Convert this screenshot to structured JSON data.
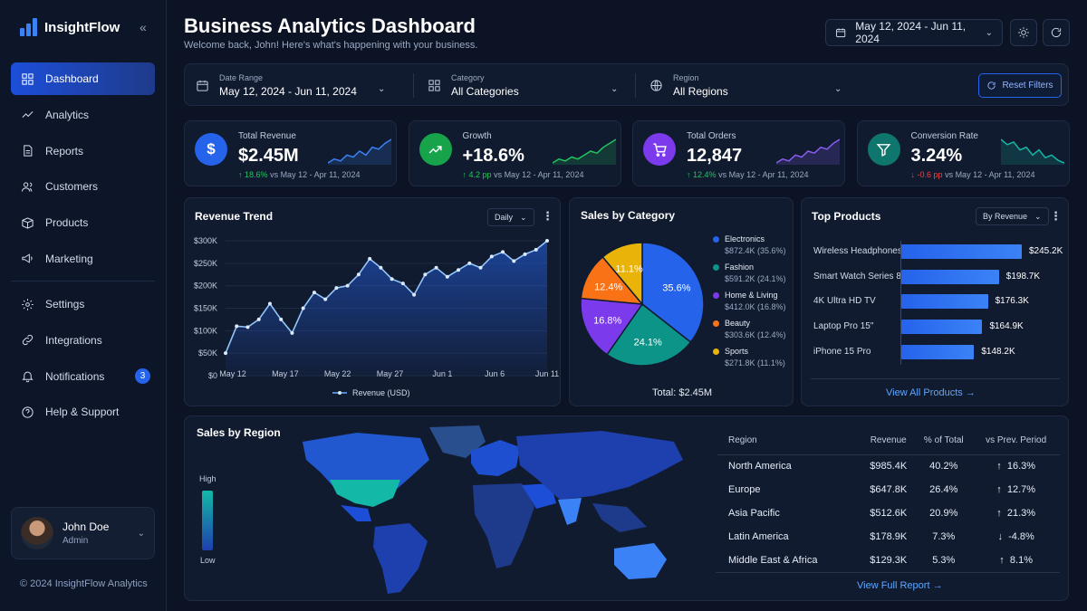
{
  "app": {
    "name": "InsightFlow",
    "collapse_icon": "double-chevron-left-icon"
  },
  "nav": {
    "primary": [
      {
        "label": "Dashboard",
        "icon": "grid-icon",
        "active": true
      },
      {
        "label": "Analytics",
        "icon": "trend-line-icon"
      },
      {
        "label": "Reports",
        "icon": "document-icon"
      },
      {
        "label": "Customers",
        "icon": "users-icon"
      },
      {
        "label": "Products",
        "icon": "box-icon"
      },
      {
        "label": "Marketing",
        "icon": "megaphone-icon"
      }
    ],
    "secondary": [
      {
        "label": "Settings",
        "icon": "gear-icon"
      },
      {
        "label": "Integrations",
        "icon": "link-icon"
      },
      {
        "label": "Notifications",
        "icon": "bell-icon",
        "badge": "3"
      },
      {
        "label": "Help & Support",
        "icon": "help-circle-icon"
      }
    ]
  },
  "user": {
    "name": "John Doe",
    "role": "Admin"
  },
  "footer": {
    "copyright": "© 2024 InsightFlow Analytics"
  },
  "header": {
    "title": "Business Analytics Dashboard",
    "subtitle": "Welcome back, John! Here's what's happening with your business.",
    "date_range": "May 12, 2024 - Jun 11, 2024"
  },
  "filters": {
    "date": {
      "label": "Date Range",
      "value": "May 12, 2024 - Jun 11, 2024"
    },
    "category": {
      "label": "Category",
      "value": "All Categories"
    },
    "region": {
      "label": "Region",
      "value": "All Regions"
    },
    "reset_label": "Reset Filters"
  },
  "kpis": [
    {
      "label": "Total Revenue",
      "value": "$2.45M",
      "delta": "18.6%",
      "direction": "up",
      "compare": "vs May 12 - Apr 11, 2024",
      "color": "#2563eb",
      "icon": "$",
      "spark_color": "#3b82f6",
      "spark": [
        3,
        4,
        3.5,
        5,
        4.5,
        6,
        5,
        7,
        6.5,
        8,
        9
      ]
    },
    {
      "label": "Growth",
      "value": "+18.6%",
      "delta": "4.2 pp",
      "direction": "up",
      "compare": "vs May 12 - Apr 11, 2024",
      "color": "#16a34a",
      "icon": "trend-up-icon",
      "spark_color": "#22c55e",
      "spark": [
        2,
        3,
        2.5,
        3.5,
        3,
        4,
        5,
        4.5,
        6,
        7,
        8
      ]
    },
    {
      "label": "Total Orders",
      "value": "12,847",
      "delta": "12.4%",
      "direction": "up",
      "compare": "vs May 12 - Apr 11, 2024",
      "color": "#7c3aed",
      "icon": "cart-icon",
      "spark_color": "#8b5cf6",
      "spark": [
        2,
        3,
        2.5,
        4,
        3.5,
        5,
        4.5,
        6,
        5.5,
        7,
        8
      ]
    },
    {
      "label": "Conversion Rate",
      "value": "3.24%",
      "delta": "-0.6 pp",
      "direction": "down",
      "compare": "vs May 12 - Apr 11, 2024",
      "color": "#0f766e",
      "icon": "funnel-icon",
      "spark_color": "#14b8a6",
      "spark": [
        8,
        7,
        7.5,
        6,
        6.5,
        5,
        6,
        4.5,
        5,
        4,
        3.5
      ]
    }
  ],
  "revenue_trend": {
    "title": "Revenue Trend",
    "period": "Daily",
    "legend": "Revenue (USD)"
  },
  "sales_by_category": {
    "title": "Sales by Category",
    "total_label": "Total: $2.45M",
    "slices": [
      {
        "name": "Electronics",
        "value_text": "$872.4K (35.6%)",
        "pct": 35.6,
        "label": "35.6%",
        "color": "#2563eb"
      },
      {
        "name": "Fashion",
        "value_text": "$591.2K (24.1%)",
        "pct": 24.1,
        "label": "24.1%",
        "color": "#0d9488"
      },
      {
        "name": "Home & Living",
        "value_text": "$412.0K (16.8%)",
        "pct": 16.8,
        "label": "16.8%",
        "color": "#7c3aed"
      },
      {
        "name": "Beauty",
        "value_text": "$303.6K (12.4%)",
        "pct": 12.4,
        "label": "12.4%",
        "color": "#f97316"
      },
      {
        "name": "Sports",
        "value_text": "$271.8K (11.1%)",
        "pct": 11.1,
        "label": "11.1%",
        "color": "#eab308"
      }
    ]
  },
  "top_products": {
    "title": "Top Products",
    "sort": "By Revenue",
    "link": "View All Products",
    "items": [
      {
        "name": "Wireless Headphones",
        "value": 245.2,
        "label": "$245.2K"
      },
      {
        "name": "Smart Watch Series 8",
        "value": 198.7,
        "label": "$198.7K"
      },
      {
        "name": "4K Ultra HD TV",
        "value": 176.3,
        "label": "$176.3K"
      },
      {
        "name": "Laptop Pro 15\"",
        "value": 164.9,
        "label": "$164.9K"
      },
      {
        "name": "iPhone 15 Pro",
        "value": 148.2,
        "label": "$148.2K"
      }
    ]
  },
  "sales_by_region": {
    "title": "Sales by Region",
    "scale_high": "High",
    "scale_low": "Low",
    "columns": [
      "Region",
      "Revenue",
      "% of Total",
      "vs Prev. Period"
    ],
    "rows": [
      {
        "region": "North America",
        "revenue": "$985.4K",
        "share": "40.2%",
        "change": "16.3%",
        "direction": "up"
      },
      {
        "region": "Europe",
        "revenue": "$647.8K",
        "share": "26.4%",
        "change": "12.7%",
        "direction": "up"
      },
      {
        "region": "Asia Pacific",
        "revenue": "$512.6K",
        "share": "20.9%",
        "change": "21.3%",
        "direction": "up"
      },
      {
        "region": "Latin America",
        "revenue": "$178.9K",
        "share": "7.3%",
        "change": "-4.8%",
        "direction": "down"
      },
      {
        "region": "Middle East & Africa",
        "revenue": "$129.3K",
        "share": "5.3%",
        "change": "8.1%",
        "direction": "up"
      }
    ],
    "link": "View Full Report"
  },
  "chart_data": [
    {
      "type": "line",
      "title": "Revenue Trend",
      "series": [
        {
          "name": "Revenue (USD)",
          "values": [
            50,
            110,
            108,
            125,
            160,
            125,
            95,
            150,
            185,
            170,
            195,
            200,
            225,
            260,
            240,
            215,
            205,
            180,
            225,
            240,
            220,
            235,
            250,
            240,
            265,
            275,
            255,
            270,
            280,
            300
          ]
        }
      ],
      "x_tick_labels": [
        "May 12",
        "May 17",
        "May 22",
        "May 27",
        "Jun 1",
        "Jun 6",
        "Jun 11"
      ],
      "y_tick_labels": [
        "$0",
        "$50K",
        "$100K",
        "$150K",
        "$200K",
        "$250K",
        "$300K"
      ],
      "ylim": [
        0,
        300
      ],
      "grid": true,
      "legend": "bottom"
    },
    {
      "type": "pie",
      "title": "Sales by Category",
      "categories": [
        "Electronics",
        "Fashion",
        "Home & Living",
        "Beauty",
        "Sports"
      ],
      "values": [
        35.6,
        24.1,
        16.8,
        12.4,
        11.1
      ]
    },
    {
      "type": "bar",
      "title": "Top Products",
      "categories": [
        "Wireless Headphones",
        "Smart Watch Series 8",
        "4K Ultra HD TV",
        "Laptop Pro 15\"",
        "iPhone 15 Pro"
      ],
      "values": [
        245.2,
        198.7,
        176.3,
        164.9,
        148.2
      ]
    }
  ]
}
